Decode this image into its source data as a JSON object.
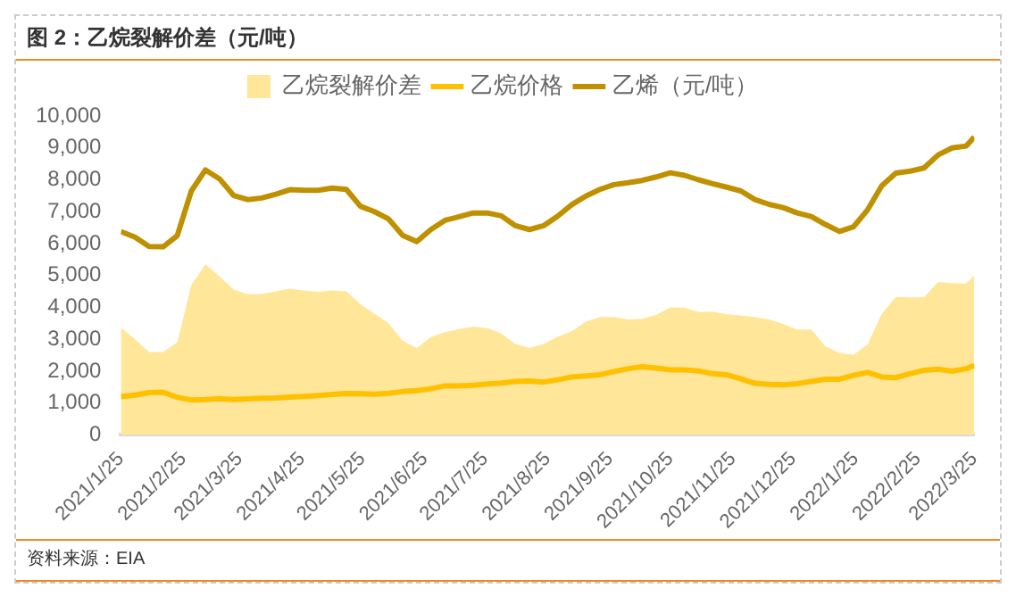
{
  "chart_data": {
    "type": "line",
    "title": "图 2：乙烷裂解价差（元/吨）",
    "annotations": [
      "资料来源：EIA"
    ],
    "legend": "top",
    "marker": "none",
    "x": [
      "2021-01-25",
      "2021-02-01",
      "2021-02-08",
      "2021-02-15",
      "2021-02-22",
      "2021-03-01",
      "2021-03-08",
      "2021-03-15",
      "2021-03-22",
      "2021-03-29",
      "2021-04-05",
      "2021-04-12",
      "2021-04-19",
      "2021-04-26",
      "2021-05-03",
      "2021-05-10",
      "2021-05-17",
      "2021-05-24",
      "2021-05-31",
      "2021-06-07",
      "2021-06-14",
      "2021-06-21",
      "2021-06-28",
      "2021-07-05",
      "2021-07-12",
      "2021-07-19",
      "2021-07-26",
      "2021-08-02",
      "2021-08-09",
      "2021-08-16",
      "2021-08-23",
      "2021-08-30",
      "2021-09-06",
      "2021-09-13",
      "2021-09-20",
      "2021-09-27",
      "2021-10-04",
      "2021-10-11",
      "2021-10-18",
      "2021-10-25",
      "2021-11-01",
      "2021-11-08",
      "2021-11-15",
      "2021-11-22",
      "2021-11-29",
      "2021-12-06",
      "2021-12-13",
      "2021-12-20",
      "2021-12-27",
      "2022-01-03",
      "2022-01-10",
      "2022-01-17",
      "2022-01-24",
      "2022-01-31",
      "2022-02-07",
      "2022-02-14",
      "2022-02-21",
      "2022-02-28",
      "2022-03-07",
      "2022-03-14",
      "2022-03-21",
      "2022-03-25"
    ],
    "series": [
      {
        "name": "乙烷裂解价差",
        "type": "area",
        "color": "#ffe699",
        "values": [
          3370,
          3000,
          2600,
          2600,
          2900,
          4700,
          5350,
          4970,
          4560,
          4410,
          4420,
          4500,
          4590,
          4530,
          4490,
          4530,
          4500,
          4100,
          3800,
          3500,
          2950,
          2730,
          3070,
          3220,
          3320,
          3400,
          3350,
          3180,
          2850,
          2730,
          2850,
          3080,
          3250,
          3550,
          3700,
          3700,
          3620,
          3640,
          3770,
          4000,
          3990,
          3850,
          3870,
          3780,
          3750,
          3690,
          3620,
          3480,
          3310,
          3310,
          2780,
          2570,
          2520,
          2840,
          3800,
          4330,
          4310,
          4320,
          4800,
          4760,
          4750,
          5000
        ]
      },
      {
        "name": "乙烷价格",
        "type": "line",
        "color": "#ffc000",
        "values": [
          1200,
          1250,
          1330,
          1340,
          1180,
          1100,
          1110,
          1140,
          1110,
          1130,
          1150,
          1160,
          1190,
          1210,
          1240,
          1270,
          1300,
          1290,
          1280,
          1310,
          1360,
          1390,
          1450,
          1540,
          1540,
          1560,
          1600,
          1630,
          1680,
          1690,
          1660,
          1730,
          1820,
          1850,
          1890,
          1990,
          2080,
          2140,
          2100,
          2040,
          2040,
          2010,
          1920,
          1890,
          1760,
          1620,
          1590,
          1570,
          1610,
          1680,
          1750,
          1750,
          1870,
          1960,
          1820,
          1800,
          1920,
          2030,
          2060,
          2000,
          2080,
          2180
        ]
      },
      {
        "name": "乙烯（元/吨）",
        "type": "line",
        "color": "#bf9000",
        "values": [
          6380,
          6200,
          5910,
          5900,
          6250,
          7650,
          8310,
          8030,
          7510,
          7380,
          7430,
          7550,
          7690,
          7670,
          7670,
          7740,
          7700,
          7170,
          7000,
          6770,
          6260,
          6060,
          6440,
          6730,
          6840,
          6960,
          6960,
          6870,
          6560,
          6440,
          6560,
          6860,
          7220,
          7490,
          7700,
          7850,
          7910,
          7980,
          8090,
          8220,
          8140,
          8000,
          7880,
          7770,
          7650,
          7380,
          7230,
          7130,
          6960,
          6850,
          6600,
          6380,
          6530,
          7060,
          7810,
          8210,
          8270,
          8370,
          8780,
          9000,
          9060,
          9340
        ]
      }
    ],
    "xlim": [
      "2021-01-25",
      "2022-03-25"
    ],
    "xticks": [
      {
        "value": "2021-01-25",
        "label": "2021/1/25"
      },
      {
        "value": "2021-02-25",
        "label": "2021/2/25"
      },
      {
        "value": "2021-03-25",
        "label": "2021/3/25"
      },
      {
        "value": "2021-04-25",
        "label": "2021/4/25"
      },
      {
        "value": "2021-05-25",
        "label": "2021/5/25"
      },
      {
        "value": "2021-06-25",
        "label": "2021/6/25"
      },
      {
        "value": "2021-07-25",
        "label": "2021/7/25"
      },
      {
        "value": "2021-08-25",
        "label": "2021/8/25"
      },
      {
        "value": "2021-09-25",
        "label": "2021/9/25"
      },
      {
        "value": "2021-10-25",
        "label": "2021/10/25"
      },
      {
        "value": "2021-11-25",
        "label": "2021/11/25"
      },
      {
        "value": "2021-12-25",
        "label": "2021/12/25"
      },
      {
        "value": "2022-01-25",
        "label": "2022/1/25"
      },
      {
        "value": "2022-02-25",
        "label": "2022/2/25"
      },
      {
        "value": "2022-03-25",
        "label": "2022/3/25"
      }
    ],
    "ylim": [
      0,
      10000
    ],
    "yticks": [
      0,
      {
        "value": 1000,
        "label": "1,000"
      },
      {
        "value": 2000,
        "label": "2,000"
      },
      {
        "value": 3000,
        "label": "3,000"
      },
      {
        "value": 4000,
        "label": "4,000"
      },
      {
        "value": 5000,
        "label": "5,000"
      },
      {
        "value": 6000,
        "label": "6,000"
      },
      {
        "value": 7000,
        "label": "7,000"
      },
      {
        "value": 8000,
        "label": "8,000"
      },
      {
        "value": 9000,
        "label": "9,000"
      },
      {
        "value": 10000,
        "label": "10,000"
      }
    ]
  }
}
